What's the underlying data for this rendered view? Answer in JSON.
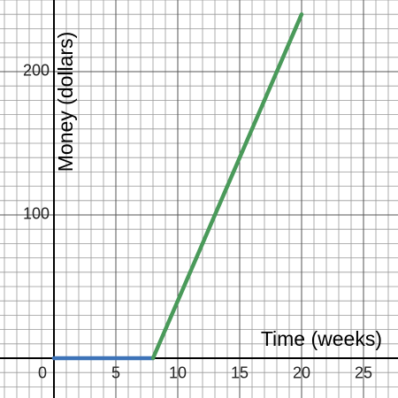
{
  "chart_data": {
    "type": "line",
    "x_label": "Time (weeks)",
    "y_label": "Money (dollars)",
    "xlim": [
      -4.357,
      27.786
    ],
    "ylim": [
      -27.78,
      250
    ],
    "xticks": [
      0,
      5,
      10,
      15,
      20,
      25
    ],
    "yticks": [
      0,
      100,
      200
    ],
    "grid": true,
    "grid_step": [
      1,
      10
    ],
    "series": [
      {
        "color": "#3d73b8",
        "x": [
          0,
          8
        ],
        "values": [
          0,
          0
        ]
      },
      {
        "color": "#4a9a5a",
        "x": [
          8,
          20
        ],
        "values": [
          0,
          240
        ]
      }
    ]
  }
}
